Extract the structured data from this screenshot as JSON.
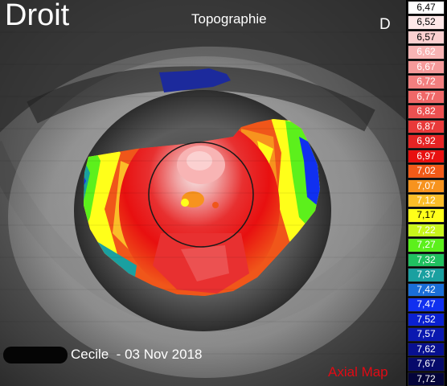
{
  "header": {
    "eye": "Droit",
    "title": "Topographie",
    "side": "D"
  },
  "footer": {
    "patient": "Cecile  - 03 Nov 2018",
    "map_type": "Axial Map"
  },
  "scale": [
    {
      "label": "6,47",
      "color": "#ffffff",
      "text": "#000000"
    },
    {
      "label": "6,52",
      "color": "#fde8e8",
      "text": "#000000"
    },
    {
      "label": "6,57",
      "color": "#fbd0d0",
      "text": "#000000"
    },
    {
      "label": "6,62",
      "color": "#f8b4b4",
      "text": "#ffffff"
    },
    {
      "label": "6,67",
      "color": "#f59a9a",
      "text": "#ffffff"
    },
    {
      "label": "6,72",
      "color": "#f27f7f",
      "text": "#ffffff"
    },
    {
      "label": "6,77",
      "color": "#ef6868",
      "text": "#ffffff"
    },
    {
      "label": "6,82",
      "color": "#ec5151",
      "text": "#ffffff"
    },
    {
      "label": "6,87",
      "color": "#e83a3a",
      "text": "#ffffff"
    },
    {
      "label": "6,92",
      "color": "#e52424",
      "text": "#ffffff"
    },
    {
      "label": "6,97",
      "color": "#e81010",
      "text": "#ffffff"
    },
    {
      "label": "7,02",
      "color": "#f25a18",
      "text": "#ffffff"
    },
    {
      "label": "7,07",
      "color": "#f7931e",
      "text": "#ffffff"
    },
    {
      "label": "7,12",
      "color": "#fbbd28",
      "text": "#ffffff"
    },
    {
      "label": "7,17",
      "color": "#ffff1a",
      "text": "#000000"
    },
    {
      "label": "7,22",
      "color": "#c8f51c",
      "text": "#ffffff"
    },
    {
      "label": "7,27",
      "color": "#5cf01c",
      "text": "#ffffff"
    },
    {
      "label": "7,32",
      "color": "#20c060",
      "text": "#ffffff"
    },
    {
      "label": "7,37",
      "color": "#1aa0a0",
      "text": "#ffffff"
    },
    {
      "label": "7,42",
      "color": "#1a6ed8",
      "text": "#ffffff"
    },
    {
      "label": "7,47",
      "color": "#1030f0",
      "text": "#ffffff"
    },
    {
      "label": "7,52",
      "color": "#0a20d0",
      "text": "#ffffff"
    },
    {
      "label": "7,57",
      "color": "#0a18b0",
      "text": "#ffffff"
    },
    {
      "label": "7,62",
      "color": "#081090",
      "text": "#ffffff"
    },
    {
      "label": "7,67",
      "color": "#060a6a",
      "text": "#ffffff"
    },
    {
      "label": "7,72",
      "color": "#04043a",
      "text": "#ffffff"
    }
  ],
  "colors": {
    "map_type_text": "#e10a14",
    "reticle": "#1a1a1a"
  }
}
